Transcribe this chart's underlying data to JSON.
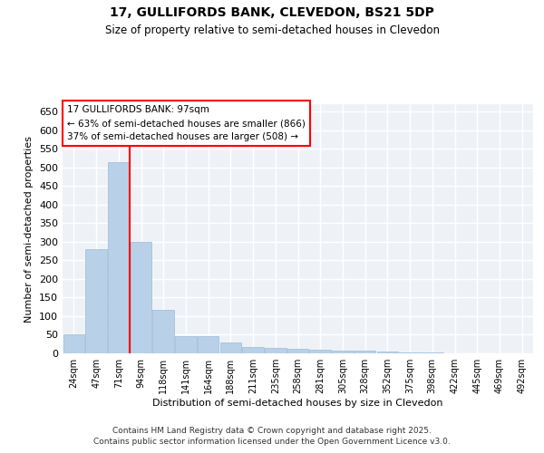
{
  "title_line1": "17, GULLIFORDS BANK, CLEVEDON, BS21 5DP",
  "title_line2": "Size of property relative to semi-detached houses in Clevedon",
  "xlabel": "Distribution of semi-detached houses by size in Clevedon",
  "ylabel": "Number of semi-detached properties",
  "categories": [
    "24sqm",
    "47sqm",
    "71sqm",
    "94sqm",
    "118sqm",
    "141sqm",
    "164sqm",
    "188sqm",
    "211sqm",
    "235sqm",
    "258sqm",
    "281sqm",
    "305sqm",
    "328sqm",
    "352sqm",
    "375sqm",
    "398sqm",
    "422sqm",
    "445sqm",
    "469sqm",
    "492sqm"
  ],
  "values": [
    50,
    280,
    515,
    300,
    118,
    46,
    46,
    30,
    18,
    15,
    12,
    10,
    8,
    7,
    5,
    3,
    2,
    1,
    1,
    1,
    1
  ],
  "bar_color": "#b8d0e8",
  "bar_edge_color": "#9abdd8",
  "annotation_text_line1": "17 GULLIFORDS BANK: 97sqm",
  "annotation_text_line2": "← 63% of semi-detached houses are smaller (866)",
  "annotation_text_line3": "37% of semi-detached houses are larger (508) →",
  "ylim": [
    0,
    670
  ],
  "yticks": [
    0,
    50,
    100,
    150,
    200,
    250,
    300,
    350,
    400,
    450,
    500,
    550,
    600,
    650
  ],
  "background_color": "#eef2f7",
  "grid_color": "#ffffff",
  "footer_line1": "Contains HM Land Registry data © Crown copyright and database right 2025.",
  "footer_line2": "Contains public sector information licensed under the Open Government Licence v3.0."
}
